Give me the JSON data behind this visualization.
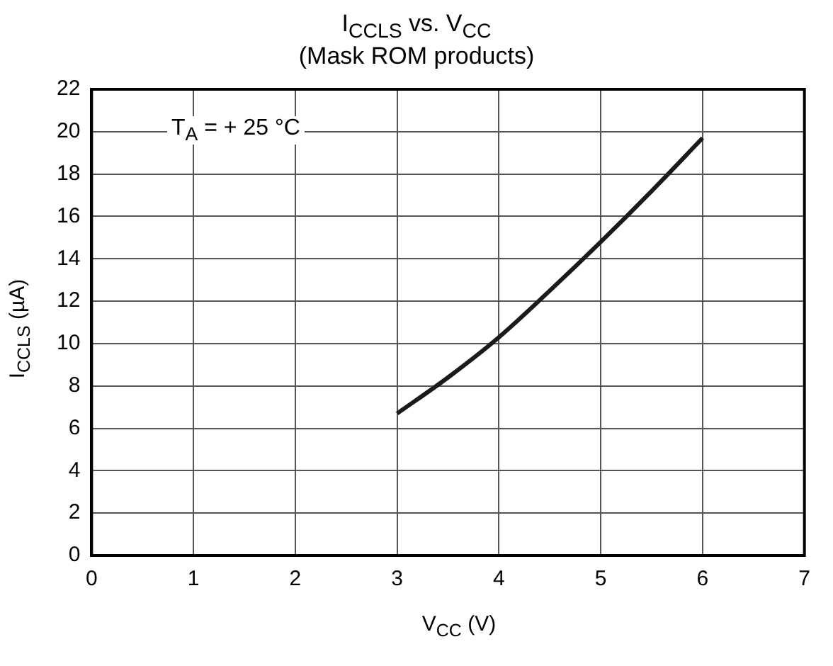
{
  "chart_data": {
    "type": "line",
    "title": "I$_{CCLS}$ vs. V$_{CC}$",
    "subtitle": "(Mask ROM products)",
    "xlabel": "V$_{CC}$ (V)",
    "ylabel": "I$_{CCLS}$ (µA)",
    "annotations": [
      "T$_{A}$ = + 25 °C"
    ],
    "series": [
      {
        "color": "#1a1a1a",
        "x": [
          3,
          3.5,
          4,
          4.5,
          5,
          5.5,
          6
        ],
        "values": [
          6.7,
          8.4,
          10.3,
          12.5,
          14.8,
          17.2,
          19.7
        ]
      }
    ],
    "xlim": [
      0,
      7
    ],
    "xticks": [
      0,
      1,
      2,
      3,
      4,
      5,
      6,
      7
    ],
    "ylim": [
      0,
      22
    ],
    "yticks": [
      0,
      2,
      4,
      6,
      8,
      10,
      12,
      14,
      16,
      18,
      20,
      22
    ],
    "grid": true,
    "legend": false,
    "marker": "none",
    "line_style": "solid"
  }
}
